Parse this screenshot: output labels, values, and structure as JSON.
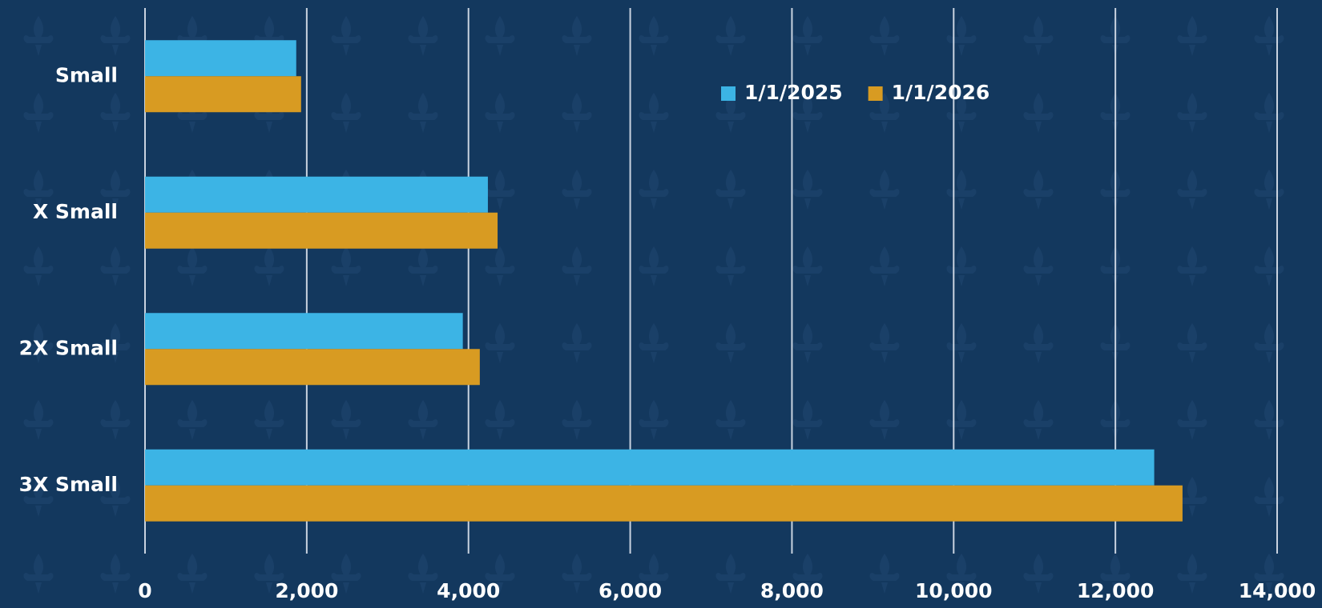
{
  "chart_data": {
    "type": "hbar",
    "categories": [
      "Small",
      "X Small",
      "2X Small",
      "3X Small"
    ],
    "series": [
      {
        "name": "1/1/2025",
        "color": "#3cb4e5",
        "values": [
          1870,
          4240,
          3930,
          12480
        ]
      },
      {
        "name": "1/1/2026",
        "color": "#d89b22",
        "values": [
          1930,
          4360,
          4140,
          12830
        ]
      }
    ],
    "xlim": [
      0,
      14000
    ],
    "xticks": [
      0,
      {
        "value": 2000,
        "label": "2,000"
      },
      {
        "value": 4000,
        "label": "4,000"
      },
      {
        "value": 6000,
        "label": "6,000"
      },
      {
        "value": 8000,
        "label": "8,000"
      },
      {
        "value": 10000,
        "label": "10,000"
      },
      {
        "value": 12000,
        "label": "12,000"
      },
      {
        "value": 14000,
        "label": "14,000"
      }
    ],
    "grid": true,
    "legend": "upper center"
  }
}
